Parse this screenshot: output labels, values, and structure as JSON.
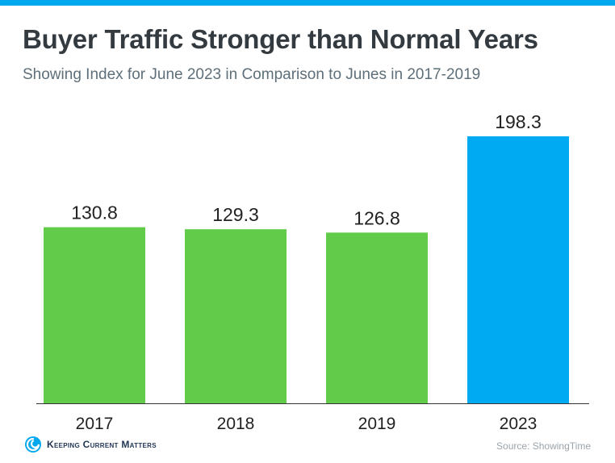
{
  "header": {
    "title": "Buyer Traffic Stronger than Normal Years",
    "subtitle": "Showing Index for June 2023 in Comparison to Junes in 2017-2019"
  },
  "footer": {
    "logo_text": "Keeping Current Matters",
    "source": "Source: ShowingTime"
  },
  "colors": {
    "top_bar": "#00a8ee",
    "bar_past": "#62cc4a",
    "bar_highlight": "#00aaf2",
    "baseline": "#333333",
    "logo": "#00a8ee"
  },
  "chart_data": {
    "type": "bar",
    "categories": [
      "2017",
      "2018",
      "2019",
      "2023"
    ],
    "values": [
      130.8,
      129.3,
      126.8,
      198.3
    ],
    "data_labels": [
      "130.8",
      "129.3",
      "126.8",
      "198.3"
    ],
    "highlight_index": 3,
    "title": "Buyer Traffic Stronger than Normal Years",
    "subtitle": "Showing Index for June 2023 in Comparison to Junes in 2017-2019",
    "xlabel": "",
    "ylabel": "",
    "ylim": [
      0,
      198.3
    ],
    "grid": false,
    "legend": "none"
  }
}
